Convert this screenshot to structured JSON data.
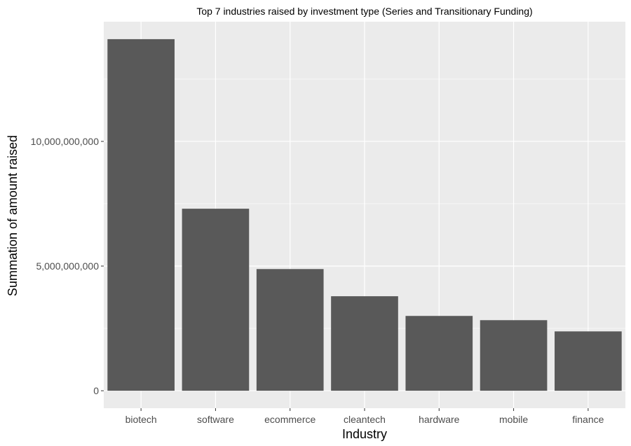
{
  "chart_data": {
    "type": "bar",
    "title": "Top 7 industries raised by investment type (Series and Transitionary Funding)",
    "xlabel": "Industry",
    "ylabel": "Summation of amount raised",
    "categories": [
      "biotech",
      "software",
      "ecommerce",
      "cleantech",
      "hardware",
      "mobile",
      "finance"
    ],
    "values": [
      14100000000,
      7300000000,
      4880000000,
      3790000000,
      3000000000,
      2830000000,
      2380000000
    ],
    "ylim": [
      -700000000,
      14800000000
    ],
    "y_ticks": [
      0,
      5000000000,
      10000000000
    ],
    "y_tick_labels": [
      "0",
      "5,000,000,000",
      "10,000,000,000"
    ],
    "grid": true,
    "legend": "none",
    "colors": {
      "panel_background": "#ebebeb",
      "grid_major": "#ffffff",
      "bar_fill": "#595959",
      "tick_mark": "#333333"
    }
  }
}
